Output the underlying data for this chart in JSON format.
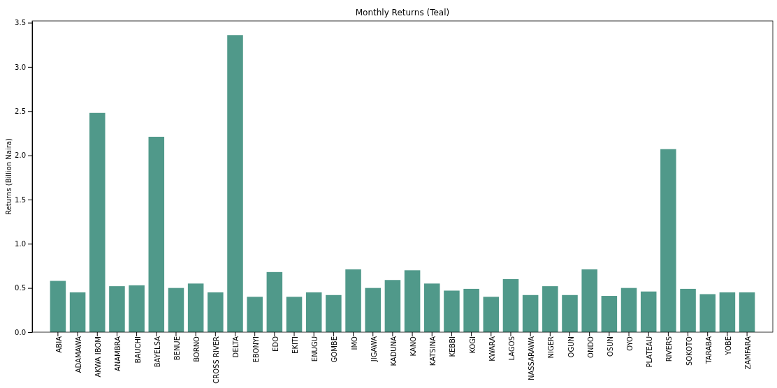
{
  "chart_data": {
    "type": "bar",
    "title": "Monthly Returns (Teal)",
    "ylabel": "Returns (Billion Naira)",
    "categories": [
      "ABIA",
      "ADAMAWA",
      "AKWA IBOM",
      "ANAMBRA",
      "BAUCHI",
      "BAYELSA",
      "BENUE",
      "BORNO",
      "CROSS RIVER",
      "DELTA",
      "EBONYI",
      "EDO",
      "EKITI",
      "ENUGU",
      "GOMBE",
      "IMO",
      "JIGAWA",
      "KADUNA",
      "KANO",
      "KATSINA",
      "KEBBI",
      "KOGI",
      "KWARA",
      "LAGOS",
      "NASSARAWA",
      "NIGER",
      "OGUN",
      "ONDO",
      "OSUN",
      "OYO",
      "PLATEAU",
      "RIVERS",
      "SOKOTO",
      "TARABA",
      "YOBE",
      "ZAMFARA"
    ],
    "values": [
      0.58,
      0.45,
      2.48,
      0.52,
      0.53,
      2.21,
      0.5,
      0.55,
      0.45,
      3.36,
      0.4,
      0.68,
      0.4,
      0.45,
      0.42,
      0.71,
      0.5,
      0.59,
      0.7,
      0.55,
      0.47,
      0.49,
      0.4,
      0.6,
      0.42,
      0.52,
      0.42,
      0.71,
      0.41,
      0.5,
      0.46,
      2.07,
      0.49,
      0.43,
      0.45,
      0.45
    ],
    "color": "#50998a",
    "ylim": [
      0,
      3.52
    ],
    "yticks": [
      {
        "value": 0,
        "label": "0.0"
      },
      {
        "value": 0.5,
        "label": "0.5"
      },
      {
        "value": 1,
        "label": "1.0"
      },
      {
        "value": 1.5,
        "label": "1.5"
      },
      {
        "value": 2,
        "label": "2.0"
      },
      {
        "value": 2.5,
        "label": "2.5"
      },
      {
        "value": 3,
        "label": "3.0"
      },
      {
        "value": 3.5,
        "label": "3.5"
      }
    ]
  }
}
